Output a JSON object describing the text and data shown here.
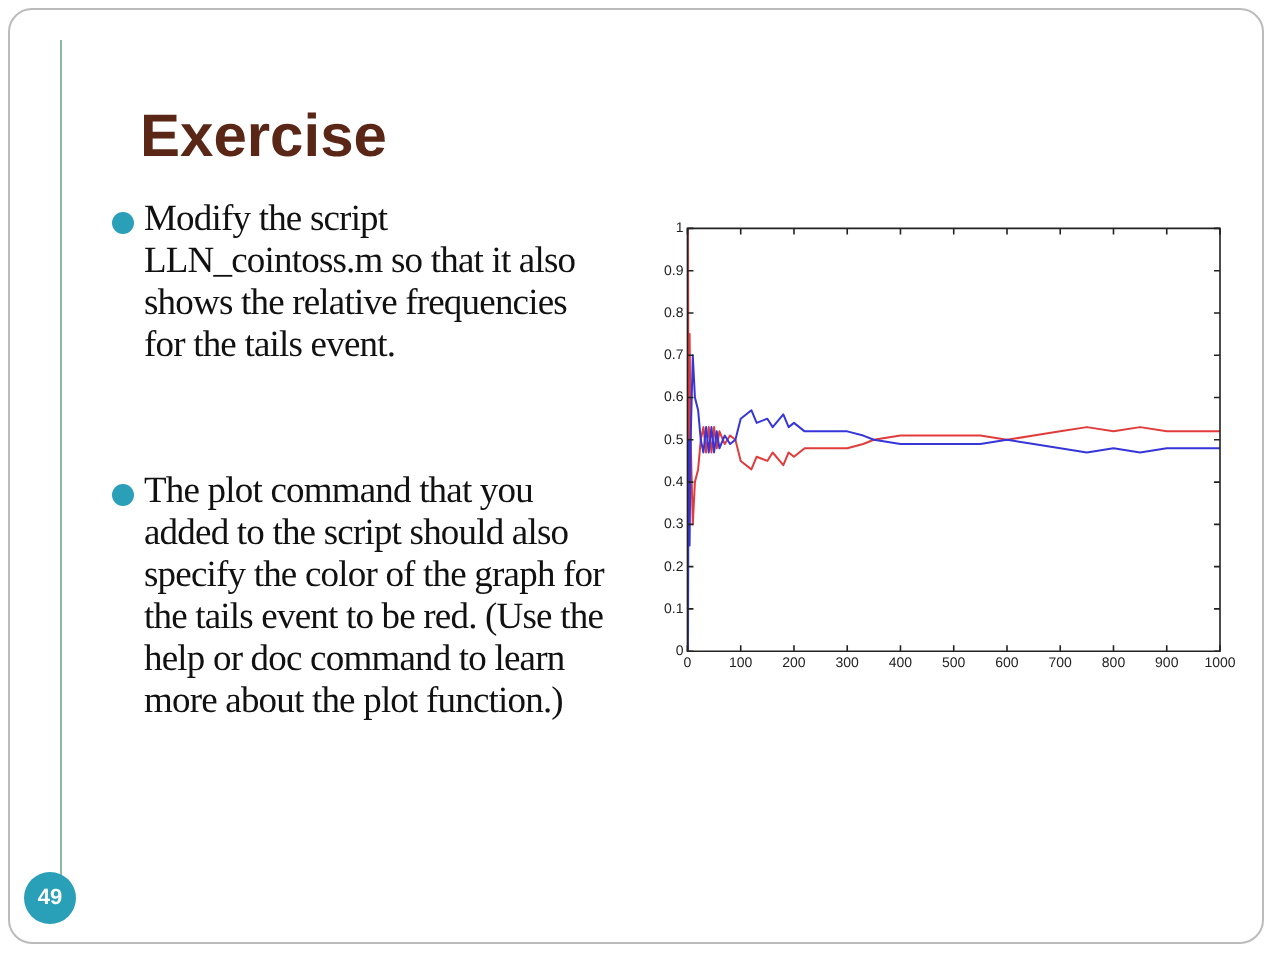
{
  "chart_data": {
    "type": "line",
    "title": "Exercise",
    "annotations": [
      "Modify the script LLN_cointoss.m so that it also shows the relative frequencies for the tails event.",
      "The plot command that you added to the script should also specify the color of the graph for the tails event to be red. (Use the help or doc command to learn more about the plot function.)",
      "49"
    ],
    "x": [
      1,
      2,
      4,
      6,
      10,
      14,
      20,
      25,
      30,
      35,
      40,
      45,
      50,
      55,
      60,
      70,
      80,
      90,
      100,
      120,
      130,
      150,
      160,
      180,
      190,
      200,
      220,
      250,
      300,
      330,
      350,
      400,
      450,
      500,
      550,
      600,
      650,
      700,
      750,
      800,
      850,
      900,
      950,
      1000
    ],
    "series": [
      {
        "color": "#3636d8",
        "values": [
          0,
          0.5,
          0.25,
          0.5,
          0.7,
          0.6,
          0.57,
          0.5,
          0.47,
          0.53,
          0.47,
          0.53,
          0.47,
          0.52,
          0.48,
          0.51,
          0.49,
          0.5,
          0.55,
          0.57,
          0.54,
          0.55,
          0.53,
          0.56,
          0.53,
          0.54,
          0.52,
          0.52,
          0.52,
          0.51,
          0.5,
          0.49,
          0.49,
          0.49,
          0.49,
          0.5,
          0.49,
          0.48,
          0.47,
          0.48,
          0.47,
          0.48,
          0.48,
          0.48
        ]
      },
      {
        "color": "#e03c3c",
        "values": [
          1,
          0.5,
          0.75,
          0.5,
          0.3,
          0.4,
          0.43,
          0.5,
          0.53,
          0.47,
          0.53,
          0.47,
          0.53,
          0.48,
          0.52,
          0.49,
          0.51,
          0.5,
          0.45,
          0.43,
          0.46,
          0.45,
          0.47,
          0.44,
          0.47,
          0.46,
          0.48,
          0.48,
          0.48,
          0.49,
          0.5,
          0.51,
          0.51,
          0.51,
          0.51,
          0.5,
          0.51,
          0.52,
          0.53,
          0.52,
          0.53,
          0.52,
          0.52,
          0.52
        ]
      }
    ],
    "xlim": [
      0,
      1000
    ],
    "xticks": [
      0,
      100,
      200,
      300,
      400,
      500,
      600,
      700,
      800,
      900,
      1000
    ],
    "ylim": [
      0,
      1
    ],
    "yticks": [
      0,
      0.1,
      0.2,
      0.3,
      0.4,
      0.5,
      0.6,
      0.7,
      0.8,
      0.9,
      1
    ],
    "grid": false,
    "legend": false,
    "marker": "none",
    "line_style": "solid"
  }
}
